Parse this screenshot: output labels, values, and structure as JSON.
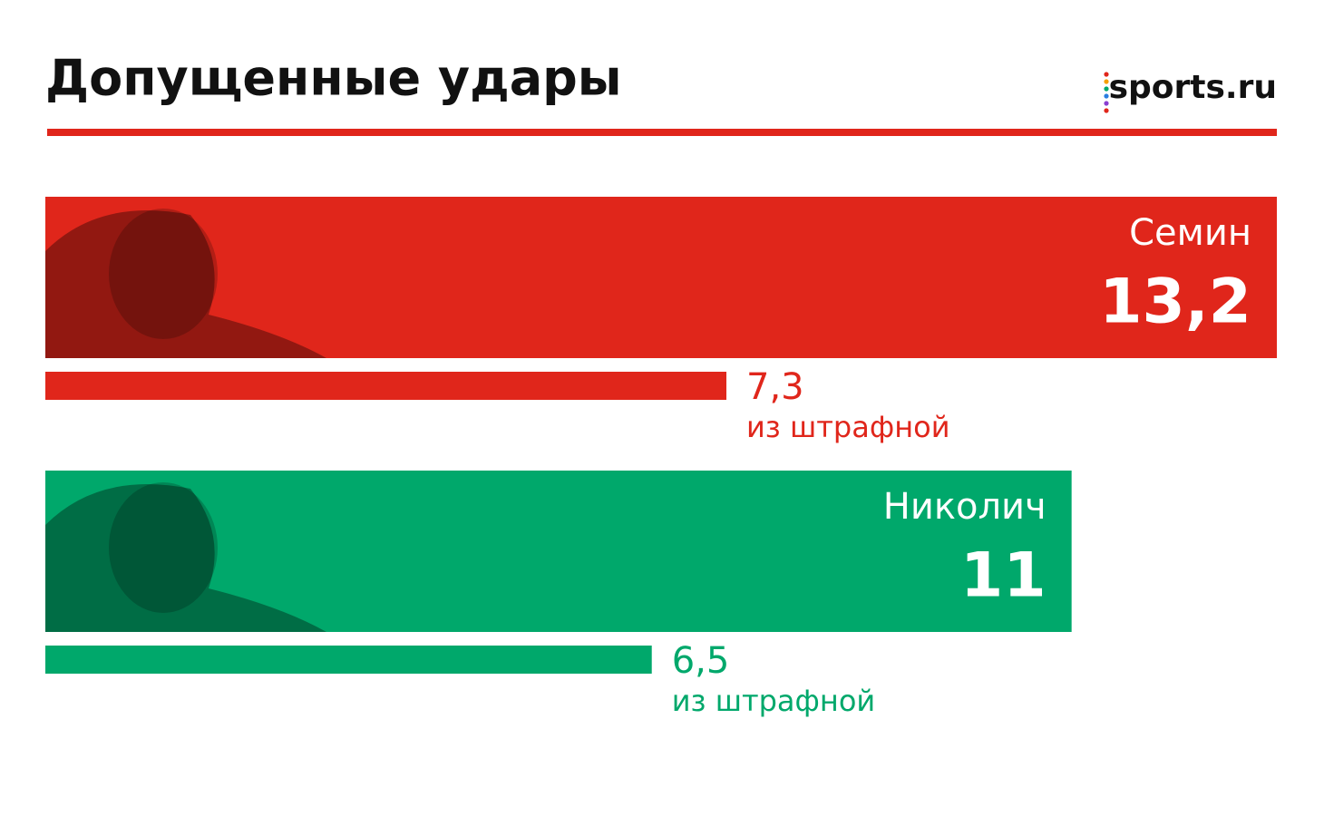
{
  "chart_data": {
    "type": "bar",
    "orientation": "horizontal",
    "title": "Допущенные удары",
    "source": "sports.ru",
    "categories": [
      "Семин",
      "Николич"
    ],
    "colors": [
      "#e0261b",
      "#00a86b"
    ],
    "series": [
      {
        "values": [
          13.2,
          11
        ],
        "value_labels": [
          "13,2",
          "11"
        ]
      },
      {
        "name": "из штрафной",
        "values": [
          7.3,
          6.5
        ],
        "value_labels": [
          "7,3",
          "6,5"
        ]
      }
    ]
  }
}
